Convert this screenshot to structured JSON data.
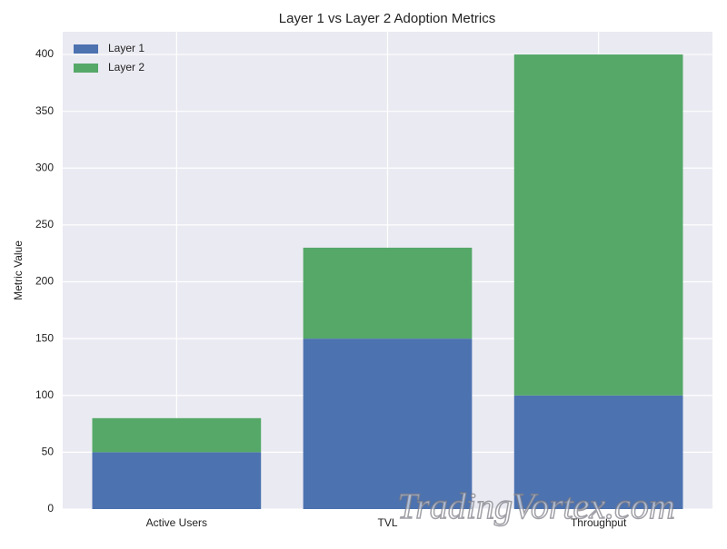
{
  "chart_data": {
    "type": "stacked_bar",
    "title": "Layer 1 vs Layer 2 Adoption Metrics",
    "y_label": "Metric Value",
    "categories": [
      "Active Users",
      "TVL",
      "Throughput"
    ],
    "series": [
      {
        "name": "Layer 1",
        "color": "#4c72b0",
        "values": [
          50,
          150,
          100
        ]
      },
      {
        "name": "Layer 2",
        "color": "#55a868",
        "values": [
          30,
          80,
          300
        ]
      }
    ],
    "ylim": [
      0,
      420
    ],
    "yticks": [
      0,
      50,
      100,
      150,
      200,
      250,
      300,
      350,
      400
    ],
    "grid": true,
    "legend": "upper-left"
  },
  "watermark": "TradingVortex.com"
}
